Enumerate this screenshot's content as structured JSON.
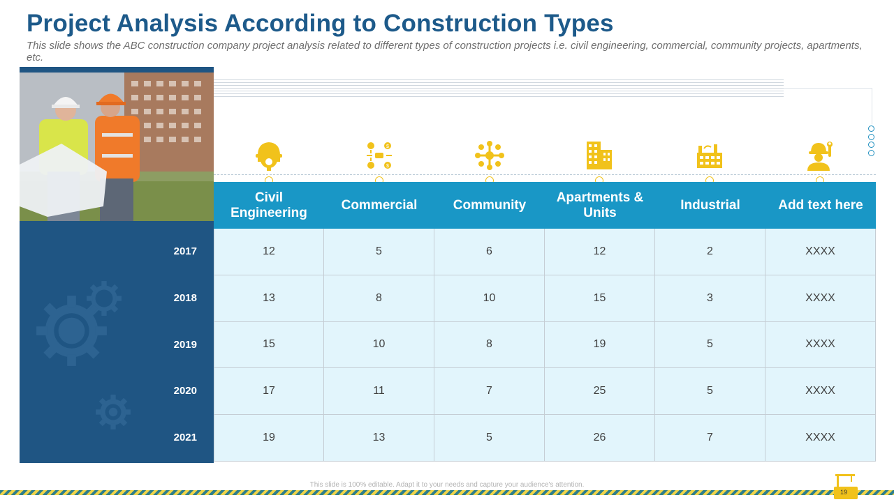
{
  "slide": {
    "title": "Project Analysis According to Construction Types",
    "subtitle": "This slide shows the ABC construction company project analysis related to different types of construction projects i.e. civil engineering, commercial, community projects, apartments, etc.",
    "footer_note": "This slide is 100% editable. Adapt it to your needs and capture your audience's attention.",
    "page_number": "19"
  },
  "colors": {
    "title": "#1d5a8a",
    "header_fill": "#1997c6",
    "cell_fill": "#e2f5fc",
    "side_panel": "#1f5583",
    "icon_accent": "#f1c21b"
  },
  "table": {
    "columns": [
      {
        "label": "Civil Engineering",
        "icon": "hard-hat-gear-icon"
      },
      {
        "label": "Commercial",
        "icon": "commerce-network-icon"
      },
      {
        "label": "Community",
        "icon": "community-circle-icon"
      },
      {
        "label": "Apartments & Units",
        "icon": "apartment-building-icon"
      },
      {
        "label": "Industrial",
        "icon": "factory-icon"
      },
      {
        "label": "Add text here",
        "icon": "worker-wrench-icon"
      }
    ],
    "rows": [
      {
        "year": "2017",
        "values": [
          "12",
          "5",
          "6",
          "12",
          "2",
          "XXXX"
        ]
      },
      {
        "year": "2018",
        "values": [
          "13",
          "8",
          "10",
          "15",
          "3",
          "XXXX"
        ]
      },
      {
        "year": "2019",
        "values": [
          "15",
          "10",
          "8",
          "19",
          "5",
          "XXXX"
        ]
      },
      {
        "year": "2020",
        "values": [
          "17",
          "11",
          "7",
          "25",
          "5",
          "XXXX"
        ]
      },
      {
        "year": "2021",
        "values": [
          "19",
          "13",
          "5",
          "26",
          "7",
          "XXXX"
        ]
      }
    ]
  }
}
